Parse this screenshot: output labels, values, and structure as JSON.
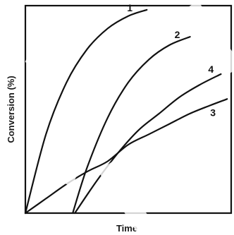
{
  "chart_data": {
    "type": "line",
    "title": "",
    "xlabel": "Time",
    "ylabel": "Conversion (%)",
    "xlim": [
      0,
      10
    ],
    "ylim": [
      0,
      100
    ],
    "grid": false,
    "series": [
      {
        "name": "1",
        "x": [
          0,
          1,
          2,
          3,
          4,
          5,
          5.9
        ],
        "y": [
          0,
          38,
          63,
          79,
          89,
          95,
          98
        ]
      },
      {
        "name": "2",
        "x": [
          2.3,
          3,
          4,
          5,
          6,
          7,
          8.0
        ],
        "y": [
          0,
          22,
          46,
          63,
          74,
          81,
          85
        ]
      },
      {
        "name": "4",
        "x": [
          2.4,
          3.5,
          4.5,
          5.5,
          6.5,
          7.5,
          8.5,
          9.5
        ],
        "y": [
          0,
          16,
          29,
          40,
          48,
          56,
          62,
          67
        ]
      },
      {
        "name": "3",
        "x": [
          0,
          1,
          2,
          3,
          4,
          5,
          6,
          7,
          8,
          9,
          9.8
        ],
        "y": [
          0,
          7,
          14,
          20,
          25,
          33,
          38,
          43,
          48,
          52,
          55
        ]
      }
    ]
  }
}
